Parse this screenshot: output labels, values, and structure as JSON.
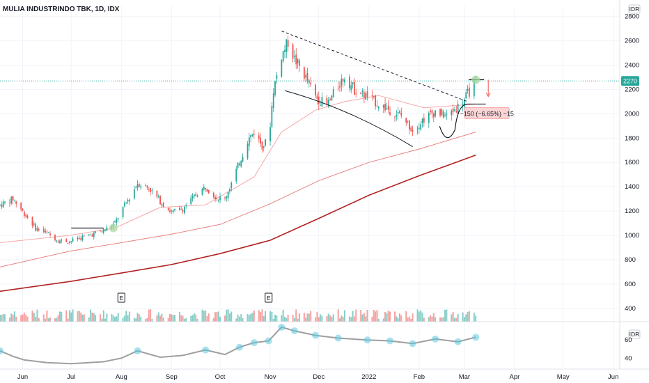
{
  "chart_data": {
    "type": "candlestick",
    "title": "MULIA INDUSTRINDO TBK, 1D, IDX",
    "price_axis": {
      "unit": "IDR",
      "ticks": [
        "2800",
        "2600",
        "2400",
        "2200",
        "2000",
        "1800",
        "1600",
        "1400",
        "1200",
        "1000",
        "800",
        "600",
        "400"
      ],
      "ylim": [
        370,
        2890
      ],
      "current_price": "2270",
      "current_value": 2270
    },
    "x_axis": {
      "labels": [
        "Jun",
        "Jul",
        "Aug",
        "Sep",
        "Oct",
        "Nov",
        "Dec",
        "2022",
        "Feb",
        "Mar",
        "Apr",
        "May",
        "Jun"
      ],
      "label_dates": [
        "2021-06-01",
        "2021-07-01",
        "2021-08-01",
        "2021-09-01",
        "2021-10-01",
        "2021-11-01",
        "2021-12-01",
        "2022-01-01",
        "2022-02-01",
        "2022-03-01",
        "2022-04-01",
        "2022-05-01",
        "2022-06-01"
      ],
      "range": [
        "2021-05-18",
        "2022-06-05"
      ],
      "last_bar": "2022-03-08"
    },
    "price_path": [
      [
        "2021-05-18",
        1250
      ],
      [
        "2021-05-26",
        1300
      ],
      [
        "2021-06-02",
        1180
      ],
      [
        "2021-06-09",
        1060
      ],
      [
        "2021-06-16",
        1020
      ],
      [
        "2021-06-23",
        960
      ],
      [
        "2021-06-30",
        950
      ],
      [
        "2021-07-07",
        980
      ],
      [
        "2021-07-14",
        1010
      ],
      [
        "2021-07-21",
        1040
      ],
      [
        "2021-07-28",
        1100
      ],
      [
        "2021-08-01",
        1200
      ],
      [
        "2021-08-05",
        1290
      ],
      [
        "2021-08-11",
        1430
      ],
      [
        "2021-08-18",
        1390
      ],
      [
        "2021-08-25",
        1280
      ],
      [
        "2021-09-01",
        1190
      ],
      [
        "2021-09-08",
        1220
      ],
      [
        "2021-09-15",
        1320
      ],
      [
        "2021-09-22",
        1400
      ],
      [
        "2021-09-29",
        1310
      ],
      [
        "2021-10-04",
        1300
      ],
      [
        "2021-10-08",
        1430
      ],
      [
        "2021-10-13",
        1600
      ],
      [
        "2021-10-18",
        1780
      ],
      [
        "2021-10-22",
        1850
      ],
      [
        "2021-10-27",
        1740
      ],
      [
        "2021-10-31",
        1780
      ],
      [
        "2021-11-03",
        2200
      ],
      [
        "2021-11-08",
        2480
      ],
      [
        "2021-11-12",
        2590
      ],
      [
        "2021-11-16",
        2450
      ],
      [
        "2021-11-22",
        2320
      ],
      [
        "2021-11-29",
        2140
      ],
      [
        "2021-12-06",
        2070
      ],
      [
        "2021-12-13",
        2230
      ],
      [
        "2021-12-17",
        2310
      ],
      [
        "2021-12-23",
        2200
      ],
      [
        "2021-12-31",
        2140
      ],
      [
        "2022-01-07",
        2080
      ],
      [
        "2022-01-14",
        2030
      ],
      [
        "2022-01-21",
        1980
      ],
      [
        "2022-01-28",
        1870
      ],
      [
        "2022-02-04",
        1960
      ],
      [
        "2022-02-11",
        2020
      ],
      [
        "2022-02-18",
        1980
      ],
      [
        "2022-02-25",
        2060
      ],
      [
        "2022-03-01",
        2120
      ],
      [
        "2022-03-08",
        2270
      ]
    ],
    "overlays": [
      {
        "name": "ma-fast",
        "color": "#f7a6a6",
        "points": [
          [
            "2021-05-18",
            940
          ],
          [
            "2021-06-30",
            1000
          ],
          [
            "2021-07-28",
            1060
          ],
          [
            "2021-08-25",
            1230
          ],
          [
            "2021-09-22",
            1250
          ],
          [
            "2021-10-22",
            1480
          ],
          [
            "2021-11-08",
            1850
          ],
          [
            "2021-11-29",
            2030
          ],
          [
            "2021-12-17",
            2100
          ],
          [
            "2022-01-07",
            2150
          ],
          [
            "2022-02-04",
            2050
          ],
          [
            "2022-03-08",
            2080
          ]
        ]
      },
      {
        "name": "ma-slow",
        "color": "#e88080",
        "points": [
          [
            "2021-05-18",
            740
          ],
          [
            "2021-06-30",
            870
          ],
          [
            "2021-08-01",
            940
          ],
          [
            "2021-09-01",
            1010
          ],
          [
            "2021-10-01",
            1090
          ],
          [
            "2021-11-01",
            1260
          ],
          [
            "2021-12-01",
            1450
          ],
          [
            "2022-01-01",
            1600
          ],
          [
            "2022-02-01",
            1710
          ],
          [
            "2022-03-08",
            1850
          ]
        ]
      },
      {
        "name": "ma-200",
        "color": "#b22222",
        "points": [
          [
            "2021-05-18",
            540
          ],
          [
            "2021-06-30",
            620
          ],
          [
            "2021-08-01",
            690
          ],
          [
            "2021-09-01",
            760
          ],
          [
            "2021-10-01",
            850
          ],
          [
            "2021-11-01",
            960
          ],
          [
            "2021-12-01",
            1140
          ],
          [
            "2022-01-01",
            1330
          ],
          [
            "2022-02-01",
            1490
          ],
          [
            "2022-03-08",
            1660
          ]
        ]
      }
    ],
    "annotations": {
      "resistance_line": [
        [
          "2021-11-08",
          2680
        ],
        [
          "2022-03-03",
          2100
        ]
      ],
      "support_curve": [
        [
          "2021-11-10",
          2190
        ],
        [
          "2022-01-28",
          1730
        ]
      ],
      "base_line": [
        [
          "2021-07-01",
          1060
        ],
        [
          "2021-07-21",
          1060
        ]
      ],
      "cup_handle": [
        [
          "2022-02-18",
          1840
        ],
        [
          "2022-03-03",
          2080
        ]
      ],
      "breakout_level": 2280,
      "measure_label": "−150 (−6.65%) −15",
      "earnings_markers": [
        {
          "label": "E",
          "date": "2021-08-01"
        },
        {
          "label": "E",
          "date": "2021-10-31"
        }
      ]
    },
    "volume": {
      "color_up": "#26a69a",
      "color_down": "#ef5350"
    },
    "rsi": {
      "unit": "IDR",
      "ticks": [
        "60",
        "40"
      ],
      "ylim": [
        28,
        80
      ],
      "points": [
        [
          "2021-05-18",
          48
        ],
        [
          "2021-05-26",
          42
        ],
        [
          "2021-06-02",
          38
        ],
        [
          "2021-06-16",
          35
        ],
        [
          "2021-07-01",
          34
        ],
        [
          "2021-07-21",
          36
        ],
        [
          "2021-08-01",
          40
        ],
        [
          "2021-08-11",
          48
        ],
        [
          "2021-08-25",
          41
        ],
        [
          "2021-09-08",
          43
        ],
        [
          "2021-09-22",
          49
        ],
        [
          "2021-10-04",
          44
        ],
        [
          "2021-10-13",
          52
        ],
        [
          "2021-10-22",
          57
        ],
        [
          "2021-10-31",
          59
        ],
        [
          "2021-11-08",
          74
        ],
        [
          "2021-11-16",
          70
        ],
        [
          "2021-11-29",
          65
        ],
        [
          "2021-12-13",
          62
        ],
        [
          "2021-12-31",
          60
        ],
        [
          "2022-01-14",
          59
        ],
        [
          "2022-01-28",
          56
        ],
        [
          "2022-02-11",
          61
        ],
        [
          "2022-02-25",
          58
        ],
        [
          "2022-03-08",
          63
        ]
      ]
    }
  }
}
